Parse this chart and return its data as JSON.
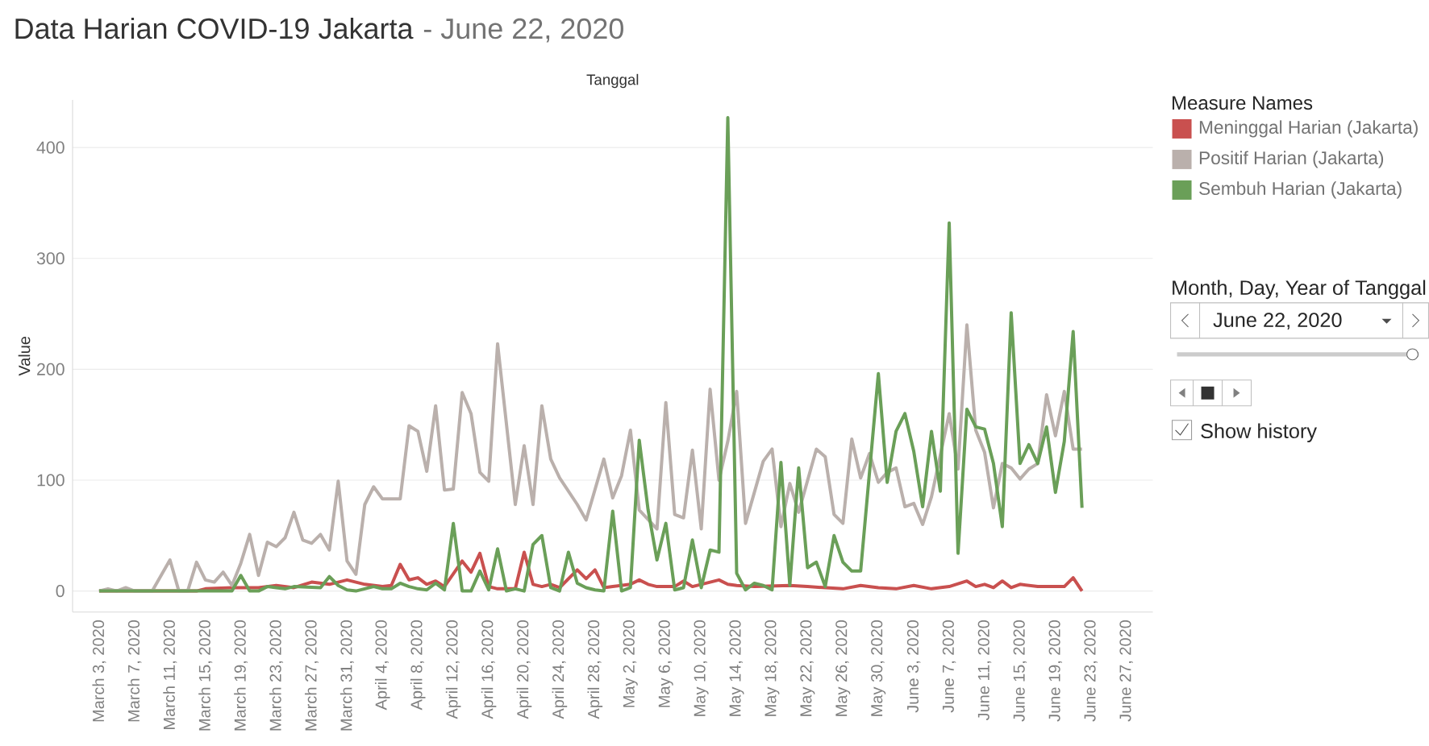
{
  "chart_data": {
    "type": "line",
    "title": "Data Harian COVID-19 Jakarta",
    "subtitle": "- June 22, 2020",
    "xlabel": "Tanggal",
    "ylabel": "Value",
    "legend_title": "Measure Names",
    "legend": "right",
    "grid": "y",
    "xlim": [
      "2020-02-29",
      "2020-06-30"
    ],
    "ylim": [
      -19,
      443
    ],
    "yticks": [
      0,
      100,
      200,
      300,
      400
    ],
    "xticks": [
      {
        "value": "2020-03-03",
        "label": "March 3, 2020"
      },
      {
        "value": "2020-03-07",
        "label": "March 7, 2020"
      },
      {
        "value": "2020-03-11",
        "label": "March 11, 2020"
      },
      {
        "value": "2020-03-15",
        "label": "March 15, 2020"
      },
      {
        "value": "2020-03-19",
        "label": "March 19, 2020"
      },
      {
        "value": "2020-03-23",
        "label": "March 23, 2020"
      },
      {
        "value": "2020-03-27",
        "label": "March 27, 2020"
      },
      {
        "value": "2020-03-31",
        "label": "March 31, 2020"
      },
      {
        "value": "2020-04-04",
        "label": "April 4, 2020"
      },
      {
        "value": "2020-04-08",
        "label": "April 8, 2020"
      },
      {
        "value": "2020-04-12",
        "label": "April 12, 2020"
      },
      {
        "value": "2020-04-16",
        "label": "April 16, 2020"
      },
      {
        "value": "2020-04-20",
        "label": "April 20, 2020"
      },
      {
        "value": "2020-04-24",
        "label": "April 24, 2020"
      },
      {
        "value": "2020-04-28",
        "label": "April 28, 2020"
      },
      {
        "value": "2020-05-02",
        "label": "May 2, 2020"
      },
      {
        "value": "2020-05-06",
        "label": "May 6, 2020"
      },
      {
        "value": "2020-05-10",
        "label": "May 10, 2020"
      },
      {
        "value": "2020-05-14",
        "label": "May 14, 2020"
      },
      {
        "value": "2020-05-18",
        "label": "May 18, 2020"
      },
      {
        "value": "2020-05-22",
        "label": "May 22, 2020"
      },
      {
        "value": "2020-05-26",
        "label": "May 26, 2020"
      },
      {
        "value": "2020-05-30",
        "label": "May 30, 2020"
      },
      {
        "value": "2020-06-03",
        "label": "June 3, 2020"
      },
      {
        "value": "2020-06-07",
        "label": "June 7, 2020"
      },
      {
        "value": "2020-06-11",
        "label": "June 11, 2020"
      },
      {
        "value": "2020-06-15",
        "label": "June 15, 2020"
      },
      {
        "value": "2020-06-19",
        "label": "June 19, 2020"
      },
      {
        "value": "2020-06-23",
        "label": "June 23, 2020"
      },
      {
        "value": "2020-06-27",
        "label": "June 27, 2020"
      }
    ],
    "series": [
      {
        "name": "Meninggal Harian (Jakarta)",
        "color": "#c9504f",
        "x": [
          "2020-03-03",
          "2020-03-14",
          "2020-03-15",
          "2020-03-18",
          "2020-03-21",
          "2020-03-23",
          "2020-03-25",
          "2020-03-27",
          "2020-03-29",
          "2020-03-31",
          "2020-04-02",
          "2020-04-04",
          "2020-04-05",
          "2020-04-06",
          "2020-04-07",
          "2020-04-08",
          "2020-04-09",
          "2020-04-10",
          "2020-04-11",
          "2020-04-13",
          "2020-04-14",
          "2020-04-15",
          "2020-04-16",
          "2020-04-17",
          "2020-04-19",
          "2020-04-20",
          "2020-04-21",
          "2020-04-22",
          "2020-04-23",
          "2020-04-24",
          "2020-04-26",
          "2020-04-27",
          "2020-04-28",
          "2020-04-29",
          "2020-04-30",
          "2020-05-02",
          "2020-05-03",
          "2020-05-04",
          "2020-05-05",
          "2020-05-07",
          "2020-05-08",
          "2020-05-09",
          "2020-05-10",
          "2020-05-12",
          "2020-05-13",
          "2020-05-14",
          "2020-05-16",
          "2020-05-20",
          "2020-05-22",
          "2020-05-26",
          "2020-05-28",
          "2020-05-30",
          "2020-06-01",
          "2020-06-03",
          "2020-06-05",
          "2020-06-07",
          "2020-06-09",
          "2020-06-10",
          "2020-06-11",
          "2020-06-12",
          "2020-06-13",
          "2020-06-14",
          "2020-06-15",
          "2020-06-17",
          "2020-06-20",
          "2020-06-21",
          "2020-06-22"
        ],
        "values": [
          0,
          0,
          2,
          3,
          3,
          5,
          3,
          8,
          6,
          10,
          6,
          4,
          5,
          24,
          10,
          12,
          6,
          9,
          4,
          27,
          17,
          34,
          4,
          2,
          2,
          35,
          6,
          4,
          6,
          3,
          19,
          11,
          19,
          3,
          4,
          6,
          10,
          6,
          4,
          4,
          9,
          4,
          6,
          10,
          6,
          5,
          4,
          5,
          4,
          2,
          5,
          3,
          2,
          5,
          2,
          4,
          9,
          4,
          6,
          3,
          9,
          3,
          6,
          4,
          4,
          12,
          0
        ]
      },
      {
        "name": "Positif Harian (Jakarta)",
        "color": "#bab0ac",
        "x": [
          "2020-03-03",
          "2020-03-04",
          "2020-03-05",
          "2020-03-06",
          "2020-03-07",
          "2020-03-09",
          "2020-03-11",
          "2020-03-12",
          "2020-03-13",
          "2020-03-14",
          "2020-03-15",
          "2020-03-16",
          "2020-03-17",
          "2020-03-18",
          "2020-03-19",
          "2020-03-20",
          "2020-03-21",
          "2020-03-22",
          "2020-03-23",
          "2020-03-24",
          "2020-03-25",
          "2020-03-26",
          "2020-03-27",
          "2020-03-28",
          "2020-03-29",
          "2020-03-30",
          "2020-03-31",
          "2020-04-01",
          "2020-04-02",
          "2020-04-03",
          "2020-04-04",
          "2020-04-06",
          "2020-04-07",
          "2020-04-08",
          "2020-04-09",
          "2020-04-10",
          "2020-04-11",
          "2020-04-12",
          "2020-04-13",
          "2020-04-14",
          "2020-04-15",
          "2020-04-16",
          "2020-04-17",
          "2020-04-19",
          "2020-04-20",
          "2020-04-21",
          "2020-04-22",
          "2020-04-23",
          "2020-04-24",
          "2020-04-26",
          "2020-04-27",
          "2020-04-29",
          "2020-04-30",
          "2020-05-01",
          "2020-05-02",
          "2020-05-03",
          "2020-05-05",
          "2020-05-06",
          "2020-05-07",
          "2020-05-08",
          "2020-05-09",
          "2020-05-10",
          "2020-05-11",
          "2020-05-12",
          "2020-05-13",
          "2020-05-14",
          "2020-05-15",
          "2020-05-17",
          "2020-05-18",
          "2020-05-19",
          "2020-05-20",
          "2020-05-21",
          "2020-05-23",
          "2020-05-24",
          "2020-05-25",
          "2020-05-26",
          "2020-05-27",
          "2020-05-28",
          "2020-05-29",
          "2020-05-30",
          "2020-05-31",
          "2020-06-01",
          "2020-06-02",
          "2020-06-03",
          "2020-06-04",
          "2020-06-05",
          "2020-06-07",
          "2020-06-08",
          "2020-06-09",
          "2020-06-10",
          "2020-06-11",
          "2020-06-12",
          "2020-06-13",
          "2020-06-14",
          "2020-06-15",
          "2020-06-16",
          "2020-06-17",
          "2020-06-18",
          "2020-06-19",
          "2020-06-20",
          "2020-06-21",
          "2020-06-22"
        ],
        "values": [
          0,
          2,
          0,
          3,
          0,
          0,
          28,
          0,
          0,
          26,
          10,
          8,
          17,
          5,
          25,
          51,
          14,
          44,
          40,
          48,
          71,
          46,
          43,
          51,
          37,
          99,
          27,
          15,
          78,
          94,
          83,
          83,
          149,
          144,
          108,
          167,
          91,
          92,
          179,
          160,
          107,
          99,
          223,
          78,
          131,
          78,
          167,
          119,
          102,
          78,
          64,
          119,
          84,
          104,
          145,
          73,
          56,
          170,
          69,
          66,
          127,
          56,
          182,
          100,
          135,
          180,
          61,
          117,
          128,
          58,
          97,
          71,
          128,
          121,
          69,
          61,
          137,
          102,
          124,
          98,
          107,
          111,
          76,
          79,
          60,
          85,
          160,
          110,
          240,
          145,
          125,
          75,
          115,
          111,
          101,
          110,
          115,
          177,
          140,
          180,
          128,
          128
        ]
      },
      {
        "name": "Sembuh Harian (Jakarta)",
        "color": "#6a9f58",
        "x": [
          "2020-03-03",
          "2020-03-18",
          "2020-03-19",
          "2020-03-20",
          "2020-03-21",
          "2020-03-22",
          "2020-03-23",
          "2020-03-24",
          "2020-03-25",
          "2020-03-28",
          "2020-03-29",
          "2020-03-30",
          "2020-03-31",
          "2020-04-01",
          "2020-04-02",
          "2020-04-03",
          "2020-04-04",
          "2020-04-05",
          "2020-04-06",
          "2020-04-07",
          "2020-04-08",
          "2020-04-09",
          "2020-04-10",
          "2020-04-11",
          "2020-04-12",
          "2020-04-13",
          "2020-04-14",
          "2020-04-15",
          "2020-04-16",
          "2020-04-17",
          "2020-04-18",
          "2020-04-19",
          "2020-04-20",
          "2020-04-21",
          "2020-04-22",
          "2020-04-23",
          "2020-04-24",
          "2020-04-25",
          "2020-04-26",
          "2020-04-27",
          "2020-04-28",
          "2020-04-29",
          "2020-04-30",
          "2020-05-01",
          "2020-05-02",
          "2020-05-03",
          "2020-05-04",
          "2020-05-05",
          "2020-05-06",
          "2020-05-07",
          "2020-05-08",
          "2020-05-09",
          "2020-05-10",
          "2020-05-11",
          "2020-05-12",
          "2020-05-13",
          "2020-05-14",
          "2020-05-15",
          "2020-05-16",
          "2020-05-17",
          "2020-05-18",
          "2020-05-19",
          "2020-05-20",
          "2020-05-21",
          "2020-05-22",
          "2020-05-23",
          "2020-05-24",
          "2020-05-25",
          "2020-05-26",
          "2020-05-27",
          "2020-05-28",
          "2020-05-30",
          "2020-05-31",
          "2020-06-01",
          "2020-06-02",
          "2020-06-03",
          "2020-06-04",
          "2020-06-05",
          "2020-06-06",
          "2020-06-07",
          "2020-06-08",
          "2020-06-09",
          "2020-06-10",
          "2020-06-11",
          "2020-06-12",
          "2020-06-13",
          "2020-06-14",
          "2020-06-15",
          "2020-06-16",
          "2020-06-17",
          "2020-06-18",
          "2020-06-19",
          "2020-06-20",
          "2020-06-21",
          "2020-06-22"
        ],
        "values": [
          0,
          0,
          14,
          0,
          0,
          4,
          3,
          2,
          4,
          3,
          13,
          5,
          1,
          0,
          2,
          4,
          2,
          2,
          7,
          4,
          2,
          1,
          7,
          1,
          61,
          0,
          0,
          18,
          1,
          38,
          0,
          2,
          0,
          42,
          50,
          3,
          0,
          35,
          7,
          3,
          1,
          0,
          72,
          0,
          3,
          136,
          73,
          28,
          61,
          1,
          3,
          46,
          3,
          37,
          35,
          427,
          16,
          1,
          7,
          5,
          1,
          116,
          5,
          111,
          21,
          26,
          4,
          50,
          26,
          18,
          18,
          196,
          98,
          144,
          160,
          126,
          76,
          144,
          90,
          332,
          34,
          164,
          148,
          146,
          115,
          58,
          251,
          115,
          132,
          115,
          148,
          89,
          135,
          234,
          75
        ]
      }
    ],
    "annotations": [
      "Month, Day, Year of Tanggal",
      "June 22, 2020",
      "Show history"
    ]
  }
}
